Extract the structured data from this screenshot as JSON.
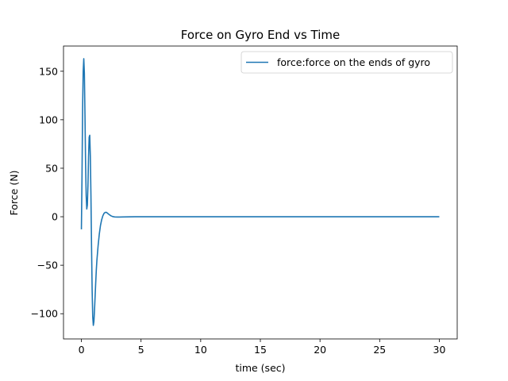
{
  "chart_data": {
    "type": "line",
    "title": "Force on Gyro End vs Time",
    "xlabel": "time (sec)",
    "ylabel": "Force (N)",
    "xlim": [
      -1.5,
      31.5
    ],
    "ylim": [
      -126,
      176
    ],
    "xticks": [
      0,
      5,
      10,
      15,
      20,
      25,
      30
    ],
    "xtick_labels": [
      "0",
      "5",
      "10",
      "15",
      "20",
      "25",
      "30"
    ],
    "yticks": [
      -100,
      -50,
      0,
      50,
      100,
      150
    ],
    "ytick_labels": [
      "−100",
      "−50",
      "0",
      "50",
      "100",
      "150"
    ],
    "grid": false,
    "legend_position": "top-right",
    "series": [
      {
        "name": "force:force on the ends of gyro",
        "color": "#1f77b4",
        "x": [
          0,
          0.05,
          0.1,
          0.15,
          0.2,
          0.25,
          0.3,
          0.35,
          0.4,
          0.45,
          0.5,
          0.55,
          0.6,
          0.65,
          0.7,
          0.75,
          0.8,
          0.85,
          0.9,
          0.95,
          1.0,
          1.05,
          1.1,
          1.15,
          1.2,
          1.25,
          1.3,
          1.4,
          1.5,
          1.6,
          1.7,
          1.8,
          1.9,
          2.0,
          2.1,
          2.2,
          2.3,
          2.4,
          2.5,
          2.6,
          2.7,
          2.8,
          3.0,
          3.2,
          3.5,
          4.0,
          4.5,
          5.0,
          6.0,
          8.0,
          10.0,
          15.0,
          20.0,
          25.0,
          30.0
        ],
        "y": [
          -13,
          40,
          110,
          150,
          163,
          148,
          105,
          55,
          22,
          8,
          12,
          32,
          62,
          82,
          84,
          62,
          22,
          -30,
          -75,
          -103,
          -112,
          -108,
          -96,
          -82,
          -68,
          -55,
          -45,
          -30,
          -18,
          -9,
          -3,
          1,
          3.5,
          4.5,
          4.5,
          3.5,
          2.5,
          1.6,
          0.8,
          0.3,
          0,
          -0.2,
          -0.3,
          -0.3,
          -0.2,
          -0.1,
          0,
          0,
          0,
          0,
          0,
          0,
          0,
          0,
          0
        ]
      }
    ]
  }
}
